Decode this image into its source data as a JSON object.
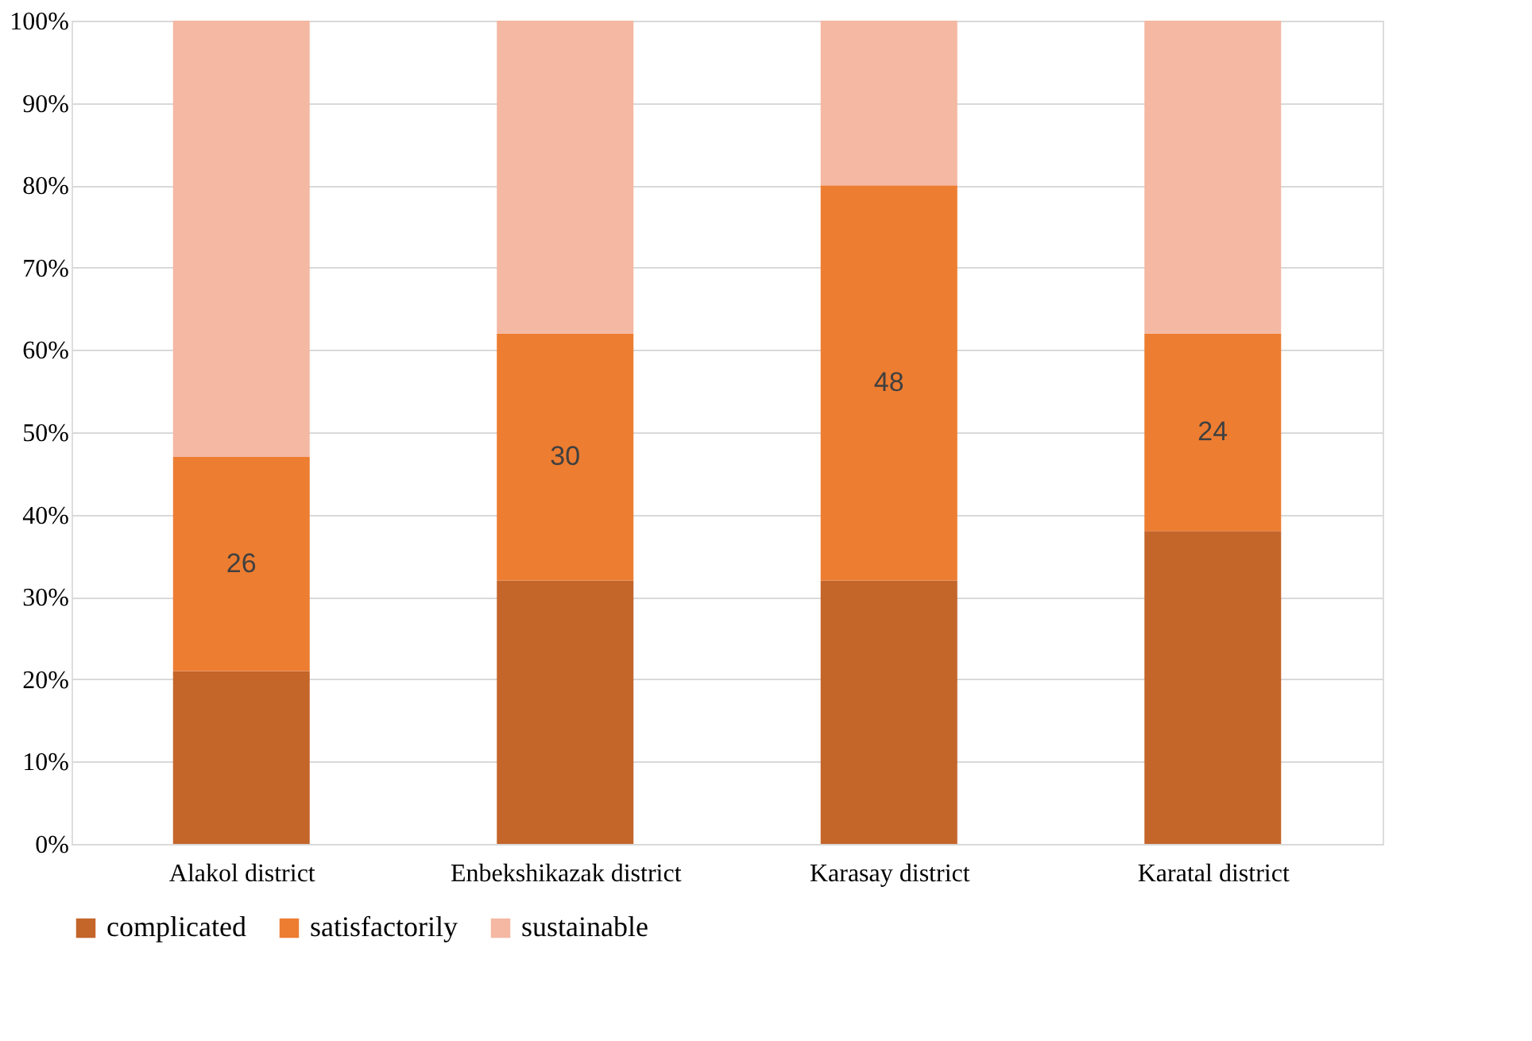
{
  "chart_data": {
    "type": "bar",
    "stacked": true,
    "categories": [
      "Alakol district",
      "Enbekshikazak district",
      "Karasay district",
      "Karatal district"
    ],
    "series": [
      {
        "name": "complicated",
        "color": "#c4652a",
        "values": [
          21,
          32,
          32,
          38
        ]
      },
      {
        "name": "satisfactorily",
        "color": "#ed7d31",
        "values": [
          26,
          30,
          48,
          24
        ],
        "value_labels": [
          "26",
          "30",
          "48",
          "24"
        ]
      },
      {
        "name": "sustainable",
        "color": "#f4b8a3",
        "values": [
          53,
          38,
          20,
          38
        ]
      }
    ],
    "ylim": [
      0,
      100
    ],
    "yticks": [
      {
        "value": 0,
        "label": "0%"
      },
      {
        "value": 10,
        "label": "10%"
      },
      {
        "value": 20,
        "label": "20%"
      },
      {
        "value": 30,
        "label": "30%"
      },
      {
        "value": 40,
        "label": "40%"
      },
      {
        "value": 50,
        "label": "50%"
      },
      {
        "value": 60,
        "label": "60%"
      },
      {
        "value": 70,
        "label": "70%"
      },
      {
        "value": 80,
        "label": "80%"
      },
      {
        "value": 90,
        "label": "90%"
      },
      {
        "value": 100,
        "label": "100%"
      }
    ],
    "grid": "y",
    "legend": "bottom"
  }
}
